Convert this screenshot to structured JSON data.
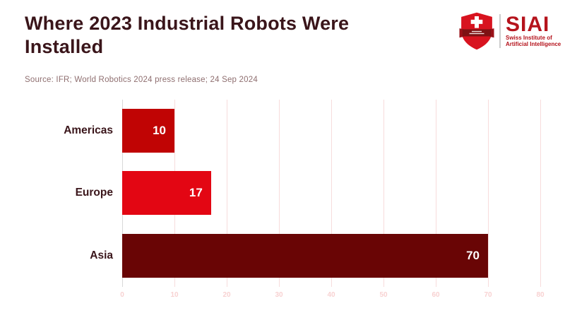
{
  "header": {
    "title": "Where 2023 Industrial Robots Were Installed"
  },
  "source_line": "Source: IFR; World Robotics 2024 press release; 24 Sep 2024",
  "logo": {
    "icon": "siai-shield-icon",
    "acronym": "SIAI",
    "subtitle_line1": "Swiss Institute of",
    "subtitle_line2": "Artificial Intelligence",
    "accent_color": "#b5131c"
  },
  "colors": {
    "title_text": "#3a151a",
    "source_text": "#8f6f70",
    "gridline": "#f7dcdc",
    "zero_line": "#d8d8d8",
    "tick_label": "#f8d2d2",
    "value_label": "#ffffff"
  },
  "chart_data": {
    "type": "bar",
    "orientation": "horizontal",
    "title": "Where 2023 Industrial Robots Were Installed",
    "source": "Source: IFR; World Robotics 2024 press release; 24 Sep 2024",
    "categories": [
      "Americas",
      "Europe",
      "Asia"
    ],
    "values": [
      10,
      17,
      70
    ],
    "bar_colors": [
      "#c00404",
      "#e30613",
      "#690505"
    ],
    "xlabel": "",
    "ylabel": "",
    "xlim": [
      0,
      80
    ],
    "xticks": [
      0,
      10,
      20,
      30,
      40,
      50,
      60,
      70,
      80
    ],
    "grid": true,
    "legend": false
  }
}
